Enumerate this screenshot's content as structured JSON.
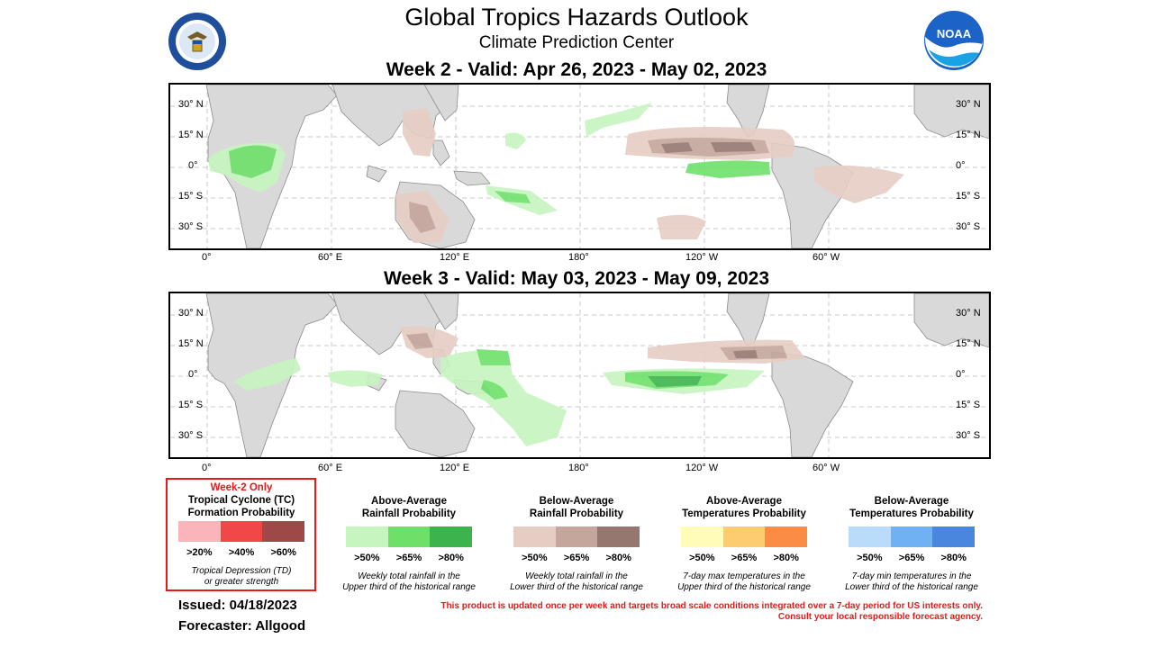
{
  "header": {
    "title": "Global Tropics Hazards Outlook",
    "subtitle": "Climate Prediction Center",
    "doc_logo_text": "DEPARTMENT OF COMMERCE · UNITED STATES OF AMERICA",
    "noaa_logo_text": "NOAA"
  },
  "week2": {
    "title": "Week 2 - Valid: Apr 26, 2023 - May 02, 2023"
  },
  "week3": {
    "title": "Week 3 - Valid: May 03, 2023 - May 09, 2023"
  },
  "axes": {
    "lat_left": [
      "30° N",
      "15° N",
      "0°",
      "15° S",
      "30° S"
    ],
    "lat_right": [
      "30° N",
      "15° N",
      "0°",
      "15° S",
      "30° S"
    ],
    "lon": [
      "0°",
      "60° E",
      "120° E",
      "180°",
      "120° W",
      "60° W"
    ]
  },
  "legend": {
    "tc": {
      "tag": "Week-2 Only",
      "title_line1": "Tropical Cyclone (TC)",
      "title_line2": "Formation Probability",
      "ticks": [
        ">20%",
        ">40%",
        ">60%"
      ],
      "colors": [
        "#fbb4b9",
        "#f04848",
        "#9e4848"
      ],
      "note_line1": "Tropical Depression (TD)",
      "note_line2": "or greater strength"
    },
    "rain_above": {
      "title_line1": "Above-Average",
      "title_line2": "Rainfall Probability",
      "ticks": [
        ">50%",
        ">65%",
        ">80%"
      ],
      "colors": [
        "#c7f5c0",
        "#6ee06a",
        "#3cb44b"
      ],
      "note_line1": "Weekly total rainfall in the",
      "note_line2": "Upper third of the historical range"
    },
    "rain_below": {
      "title_line1": "Below-Average",
      "title_line2": "Rainfall Probability",
      "ticks": [
        ">50%",
        ">65%",
        ">80%"
      ],
      "colors": [
        "#e6cdc3",
        "#c4a69c",
        "#957770"
      ],
      "note_line1": "Weekly total rainfall in the",
      "note_line2": "Lower third of the historical range"
    },
    "temp_above": {
      "title_line1": "Above-Average",
      "title_line2": "Temperatures Probability",
      "ticks": [
        ">50%",
        ">65%",
        ">80%"
      ],
      "colors": [
        "#fffbb8",
        "#fdcc70",
        "#fb8c46"
      ],
      "note_line1": "7-day max temperatures in the",
      "note_line2": "Upper third of the historical range"
    },
    "temp_below": {
      "title_line1": "Below-Average",
      "title_line2": "Temperatures Probability",
      "ticks": [
        ">50%",
        ">65%",
        ">80%"
      ],
      "colors": [
        "#b8dcfa",
        "#6fb1f2",
        "#4a86de"
      ],
      "note_line1": "7-day min temperatures in the",
      "note_line2": "Lower third of the historical range"
    }
  },
  "footer": {
    "issued": "Issued: 04/18/2023",
    "forecaster": "Forecaster: Allgood",
    "disclaimer_line1": "This product is updated once per week and targets broad scale conditions integrated over a 7-day period for US interests only.",
    "disclaimer_line2": "Consult your local responsible forecast agency."
  },
  "colors": {
    "land": "#d9d9d9",
    "coast": "#8c8c8c",
    "grid": "#c8c8c8",
    "tc_border": "#e31a1c"
  }
}
